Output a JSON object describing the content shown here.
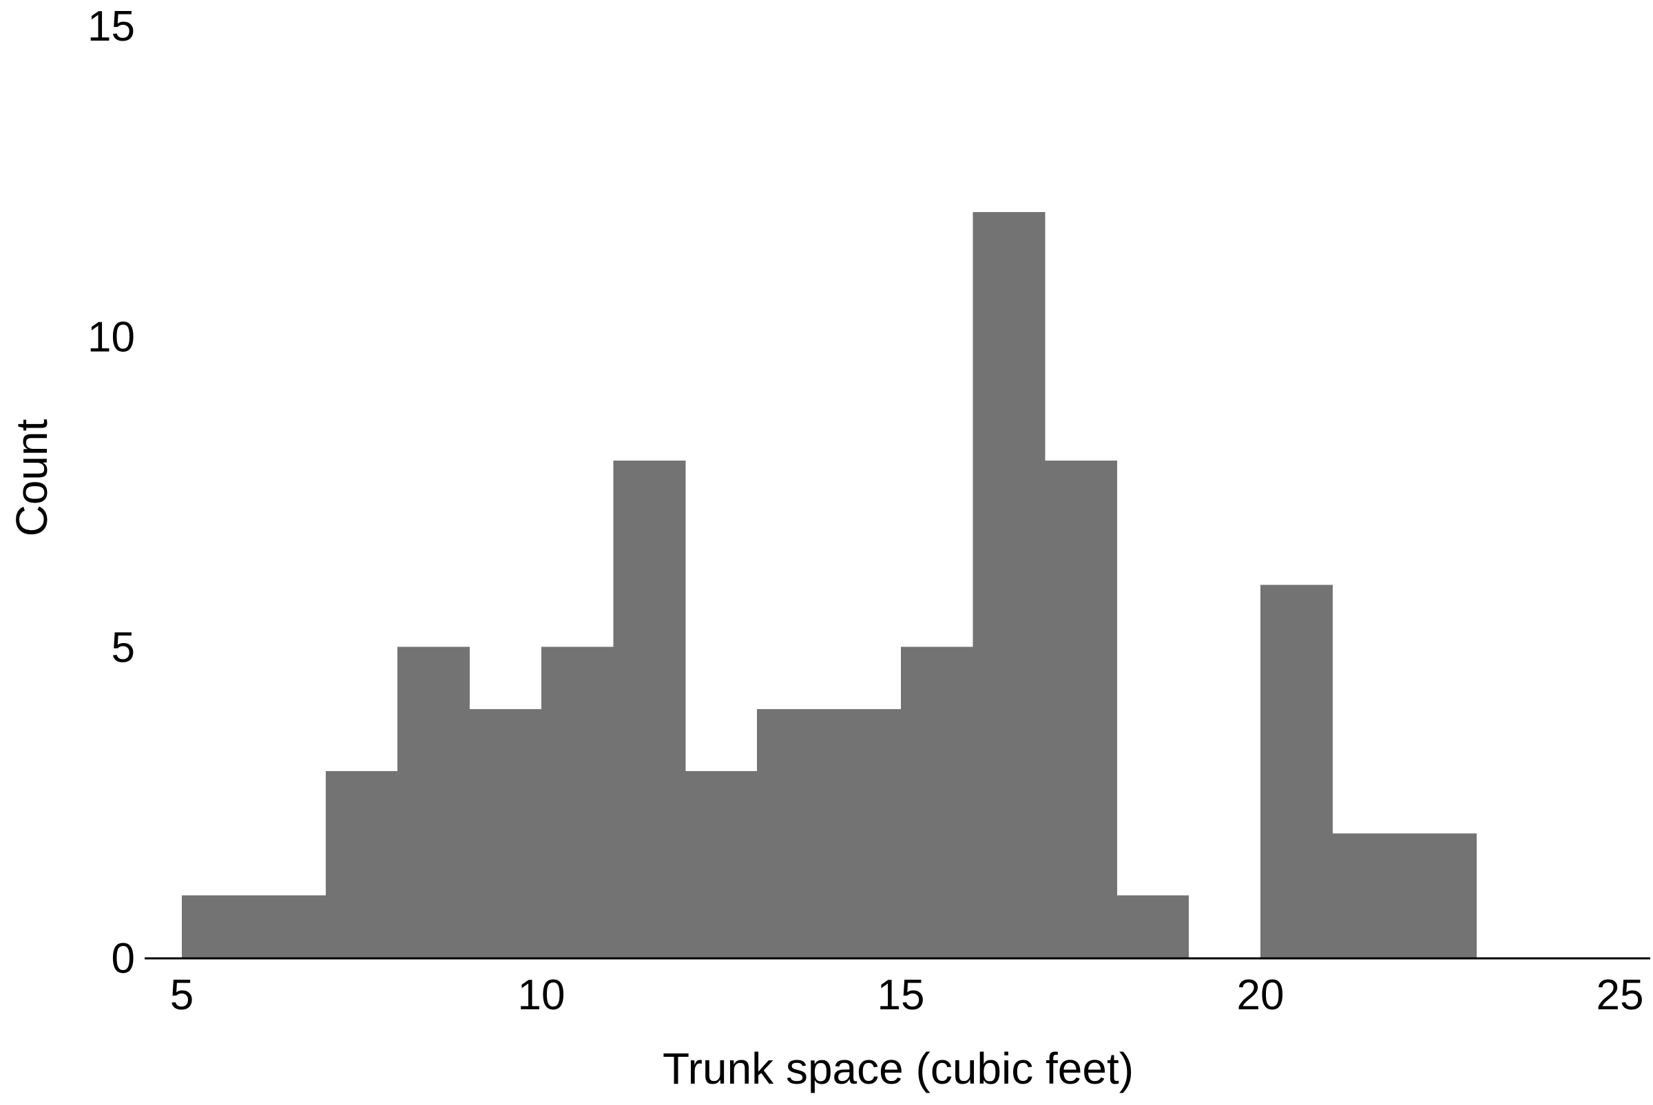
{
  "chart_data": {
    "type": "bar",
    "variant": "histogram",
    "title": "",
    "xlabel": "Trunk space (cubic feet)",
    "ylabel": "Count",
    "bin_width": 1,
    "bins": [
      {
        "x0": 5,
        "x1": 6,
        "count": 1
      },
      {
        "x0": 6,
        "x1": 7,
        "count": 1
      },
      {
        "x0": 7,
        "x1": 8,
        "count": 3
      },
      {
        "x0": 8,
        "x1": 9,
        "count": 5
      },
      {
        "x0": 9,
        "x1": 10,
        "count": 4
      },
      {
        "x0": 10,
        "x1": 11,
        "count": 5
      },
      {
        "x0": 11,
        "x1": 12,
        "count": 8
      },
      {
        "x0": 12,
        "x1": 13,
        "count": 3
      },
      {
        "x0": 13,
        "x1": 14,
        "count": 4
      },
      {
        "x0": 14,
        "x1": 15,
        "count": 4
      },
      {
        "x0": 15,
        "x1": 16,
        "count": 5
      },
      {
        "x0": 16,
        "x1": 17,
        "count": 12
      },
      {
        "x0": 17,
        "x1": 18,
        "count": 8
      },
      {
        "x0": 18,
        "x1": 19,
        "count": 1
      },
      {
        "x0": 19,
        "x1": 20,
        "count": 0
      },
      {
        "x0": 20,
        "x1": 21,
        "count": 6
      },
      {
        "x0": 21,
        "x1": 22,
        "count": 2
      },
      {
        "x0": 22,
        "x1": 23,
        "count": 2
      }
    ],
    "xlim": [
      5,
      25
    ],
    "ylim": [
      0,
      15
    ],
    "xticks": [
      5,
      10,
      15,
      20,
      25
    ],
    "xtick_labels": [
      "5",
      "10",
      "15",
      "20",
      "25"
    ],
    "yticks": [
      0,
      5,
      10,
      15
    ],
    "ytick_labels": [
      "0",
      "5",
      "10",
      "15"
    ],
    "bar_color": "#737373",
    "grid": false,
    "legend": "none"
  }
}
